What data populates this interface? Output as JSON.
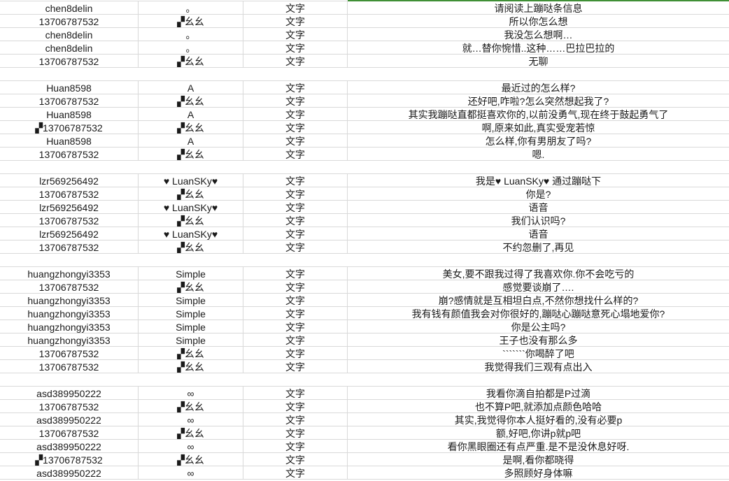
{
  "selection_color": "#3f8f35",
  "rows": [
    [
      "chen8delin",
      "。",
      "文字",
      "请阅读上蹦哒条信息"
    ],
    [
      "13706787532",
      "▞幺幺",
      "文字",
      "所以你怎么想"
    ],
    [
      "chen8delin",
      "。",
      "文字",
      "我没怎么想啊…"
    ],
    [
      "chen8delin",
      "。",
      "文字",
      "就…替你惋惜..这种……巴拉巴拉的"
    ],
    [
      "13706787532",
      "▞幺幺",
      "文字",
      "无聊"
    ],
    [],
    [
      "Huan8598",
      "A",
      "文字",
      "最近过的怎么样?"
    ],
    [
      "13706787532",
      "▞幺幺",
      "文字",
      "还好吧,咋啦?怎么突然想起我了?"
    ],
    [
      "Huan8598",
      "A",
      "文字",
      "其实我蹦哒直都挺喜欢你的,以前没勇气,现在终于鼓起勇气了"
    ],
    [
      "▞13706787532",
      "▞幺幺",
      "文字",
      "啊,原来如此,真实受宠若惊"
    ],
    [
      "Huan8598",
      "A",
      "文字",
      "怎么样,你有男朋友了吗?"
    ],
    [
      "13706787532",
      "▞幺幺",
      "文字",
      "嗯."
    ],
    [],
    [
      "lzr569256492",
      "♥ LuanSKy♥",
      "文字",
      "我是♥ LuanSKy♥ 通过蹦哒下"
    ],
    [
      "13706787532",
      "▞幺幺",
      "文字",
      "你是?"
    ],
    [
      "lzr569256492",
      "♥ LuanSKy♥",
      "文字",
      "语音"
    ],
    [
      "13706787532",
      "▞幺幺",
      "文字",
      "我们认识吗?"
    ],
    [
      "lzr569256492",
      "♥ LuanSKy♥",
      "文字",
      "语音"
    ],
    [
      "13706787532",
      "▞幺幺",
      "文字",
      "不约忽删了,再见"
    ],
    [],
    [
      "huangzhongyi3353",
      "Simple",
      "文字",
      "美女,要不跟我过得了我喜欢你.你不会吃亏的"
    ],
    [
      "13706787532",
      "▞幺幺",
      "文字",
      "感觉要谈崩了…."
    ],
    [
      "huangzhongyi3353",
      "Simple",
      "文字",
      "崩?感情就是互相坦白点,不然你想找什么样的?"
    ],
    [
      "huangzhongyi3353",
      "Simple",
      "文字",
      "我有钱有颜值我会对你很好的,蹦哒心蹦哒意死心塌地爱你?"
    ],
    [
      "huangzhongyi3353",
      "Simple",
      "文字",
      "你是公主吗?"
    ],
    [
      "huangzhongyi3353",
      "Simple",
      "文字",
      "王子也没有那么多"
    ],
    [
      "13706787532",
      "▞幺幺",
      "文字",
      "```````你喝醉了吧"
    ],
    [
      "13706787532",
      "▞幺幺",
      "文字",
      "我觉得我们三观有点出入"
    ],
    [],
    [
      "asd389950222",
      "∞",
      "文字",
      "我看你滴自拍都是P过滴"
    ],
    [
      "13706787532",
      "▞幺幺",
      "文字",
      "也不算P吧,就添加点颜色哈哈"
    ],
    [
      "asd389950222",
      "∞",
      "文字",
      "其实,我觉得你本人挺好看的,没有必要p"
    ],
    [
      "13706787532",
      "▞幺幺",
      "文字",
      "额,好吧,你讲p就p吧"
    ],
    [
      "asd389950222",
      "∞",
      "文字",
      "看你黑眼圈还有点严重.是不是没休息好呀."
    ],
    [
      "▞13706787532",
      "▞幺幺",
      "文字",
      "是啊,看你都晓得"
    ],
    [
      "asd389950222",
      "∞",
      "文字",
      "多照顾好身体嘛"
    ]
  ]
}
